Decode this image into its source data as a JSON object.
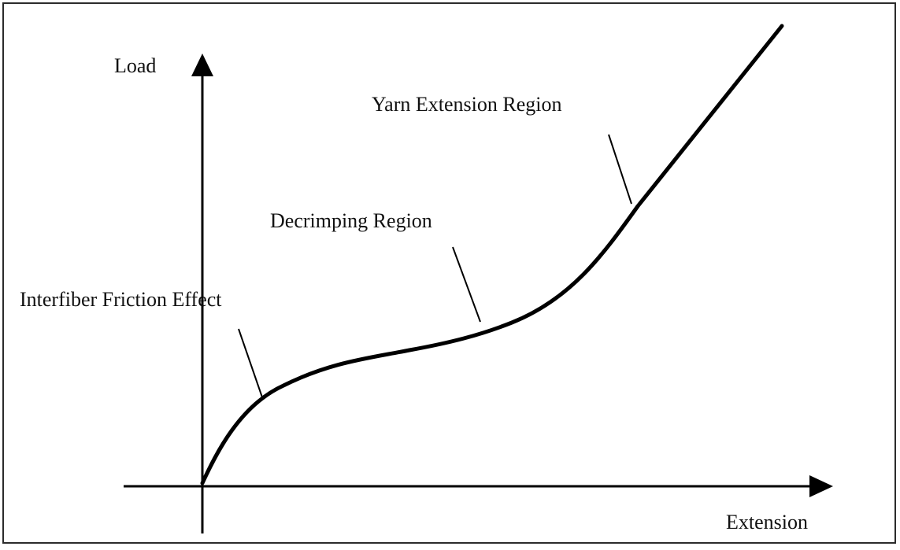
{
  "diagram": {
    "type": "load-extension curve",
    "axes": {
      "y_label": "Load",
      "x_label": "Extension"
    },
    "annotations": [
      {
        "id": "interfiber",
        "label": "Interfiber Friction Effect"
      },
      {
        "id": "decrimping",
        "label": "Decrimping Region"
      },
      {
        "id": "yarn",
        "label": "Yarn Extension Region"
      }
    ],
    "colors": {
      "stroke": "#000000",
      "frame": "#2b2b2b",
      "text": "#111111",
      "background": "#ffffff"
    }
  }
}
